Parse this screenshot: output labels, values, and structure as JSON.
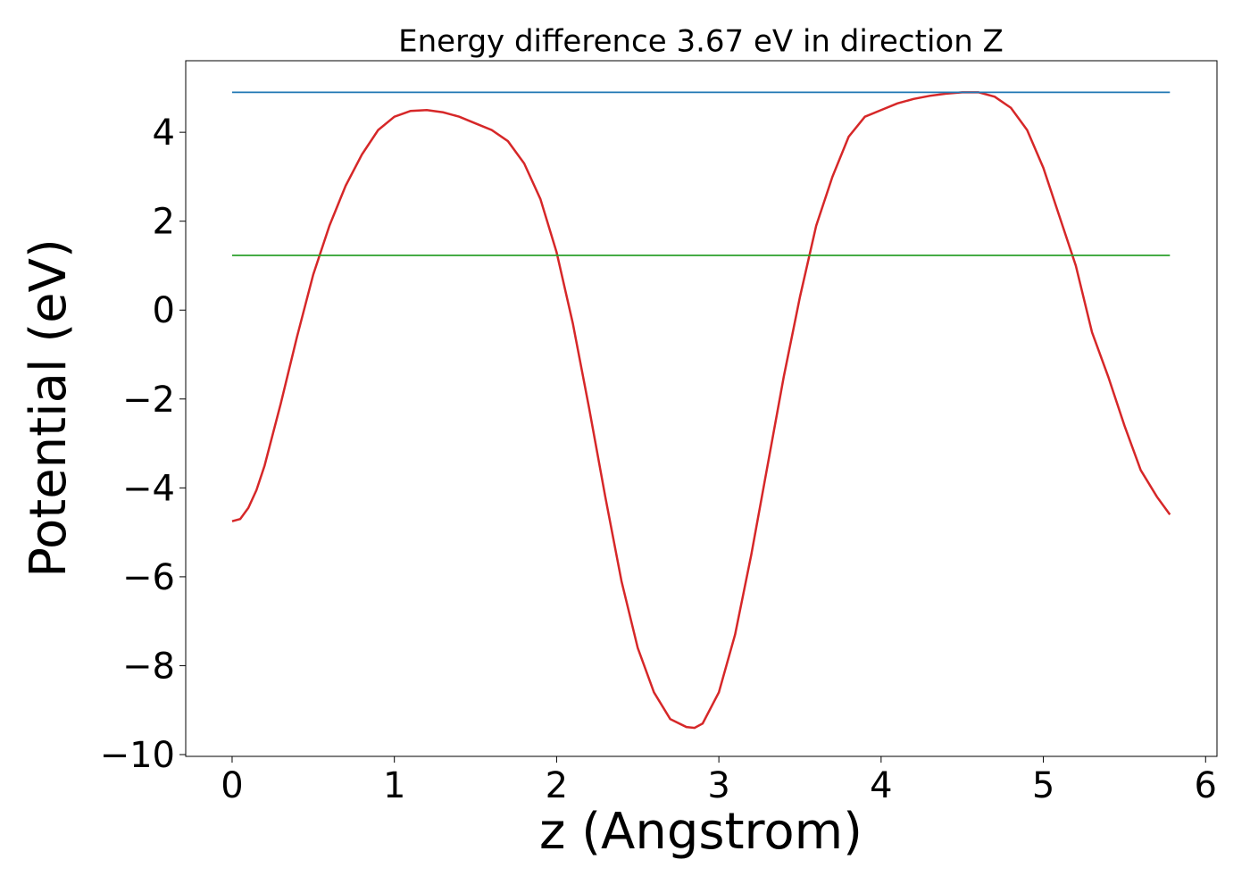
{
  "chart_data": {
    "type": "line",
    "title": "Energy difference 3.67 eV in direction Z",
    "x_label": "z (Angstrom)",
    "y_label": "Potential (eV)",
    "xlim": [
      -0.286,
      6.07
    ],
    "ylim": [
      -10.04,
      5.61
    ],
    "xticks": [
      0,
      1,
      2,
      3,
      4,
      5,
      6
    ],
    "yticks": [
      {
        "value": -10,
        "label": "−10"
      },
      {
        "value": -8,
        "label": "−8"
      },
      {
        "value": -6,
        "label": "−6"
      },
      {
        "value": -4,
        "label": "−4"
      },
      {
        "value": -2,
        "label": "−2"
      },
      0,
      2,
      4
    ],
    "series": [
      {
        "color": "#d62728",
        "x": [
          0,
          0.05,
          0.1,
          0.15,
          0.2,
          0.3,
          0.4,
          0.5,
          0.6,
          0.7,
          0.8,
          0.9,
          1.0,
          1.1,
          1.2,
          1.3,
          1.4,
          1.5,
          1.6,
          1.7,
          1.8,
          1.9,
          2.0,
          2.1,
          2.2,
          2.3,
          2.4,
          2.5,
          2.6,
          2.7,
          2.8,
          2.85,
          2.9,
          3.0,
          3.1,
          3.2,
          3.3,
          3.4,
          3.5,
          3.6,
          3.7,
          3.8,
          3.9,
          4.0,
          4.1,
          4.2,
          4.3,
          4.4,
          4.5,
          4.6,
          4.7,
          4.8,
          4.9,
          5.0,
          5.1,
          5.2,
          5.3,
          5.4,
          5.5,
          5.6,
          5.7,
          5.78
        ],
        "values": [
          -4.75,
          -4.7,
          -4.45,
          -4.05,
          -3.5,
          -2.1,
          -0.6,
          0.8,
          1.9,
          2.8,
          3.5,
          4.05,
          4.35,
          4.48,
          4.5,
          4.45,
          4.35,
          4.2,
          4.05,
          3.8,
          3.3,
          2.5,
          1.3,
          -0.3,
          -2.2,
          -4.2,
          -6.1,
          -7.6,
          -8.6,
          -9.2,
          -9.38,
          -9.4,
          -9.3,
          -8.6,
          -7.3,
          -5.5,
          -3.5,
          -1.5,
          0.3,
          1.9,
          3.0,
          3.9,
          4.35,
          4.5,
          4.65,
          4.75,
          4.82,
          4.87,
          4.9,
          4.9,
          4.8,
          4.55,
          4.05,
          3.2,
          2.1,
          1.0,
          -0.5,
          -1.5,
          -2.6,
          -3.6,
          -4.2,
          -4.6
        ]
      },
      {
        "color": "#1f77b4",
        "x": [
          0,
          5.78
        ],
        "values": [
          4.9,
          4.9
        ]
      },
      {
        "color": "#2ca02c",
        "x": [
          0,
          5.78
        ],
        "values": [
          1.23,
          1.23
        ]
      }
    ]
  }
}
